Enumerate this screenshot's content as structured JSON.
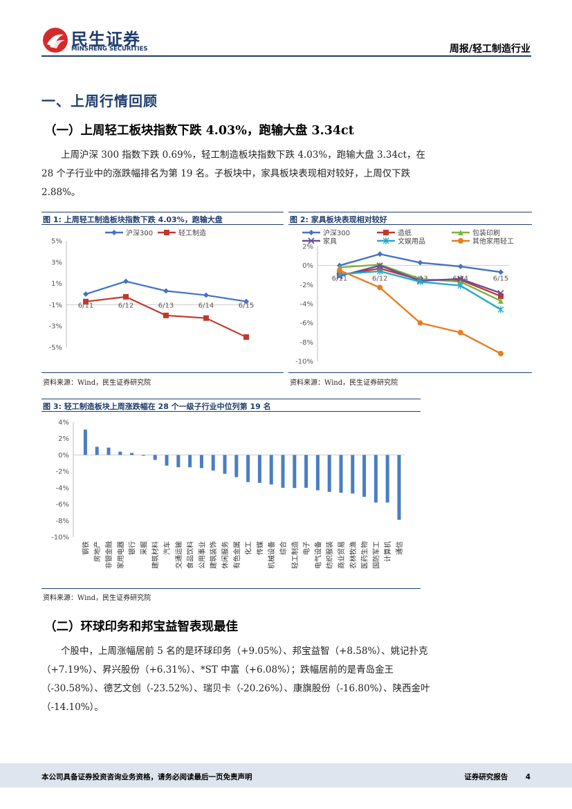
{
  "header": {
    "brand_cn": "民生证券",
    "brand_en": "MINSHENG SECURITIES",
    "report_type": "周报/轻工制造行业"
  },
  "section1": {
    "title": "一、上周行情回顾",
    "sub1_title": "（一）上周轻工板块指数下跌 4.03%，跑输大盘 3.34ct",
    "sub1_text": "上周沪深 300 指数下跌 0.69%，轻工制造板块指数下跌 4.03%，跑输大盘 3.34ct，在 28 个子行业中的涨跌幅排名为第 19 名。子板块中，家具板块表现相对较好，上周仅下跌 2.88%。",
    "sub2_title": "（二）环球印务和邦宝益智表现最佳",
    "sub2_text": "个股中，上周涨幅居前 5 名的是环球印务（+9.05%）、邦宝益智（+8.58%）、姚记扑克（+7.19%）、昇兴股份（+6.31%）、*ST 中富（+6.08%）；跌幅居前的是青岛金王（-30.58%）、德艺文创（-23.52%）、瑞贝卡（-20.26%）、康旗股份（-16.80%）、陕西金叶（-14.10%）。"
  },
  "figures": {
    "fig1_title": "图 1: 上周轻工制造板块指数下跌 4.03%，跑输大盘",
    "fig2_title": "图 2: 家具板块表现相对较好",
    "fig3_title": "图 3: 轻工制造板块上周涨跌幅在 28 个一级子行业中位列第 19 名",
    "source": "资料来源：Wind，民生证券研究院"
  },
  "chart_data": [
    {
      "type": "line",
      "categories": [
        "6/11",
        "6/12",
        "6/13",
        "6/14",
        "6/15"
      ],
      "series": [
        {
          "name": "沪深300",
          "values": [
            0.0,
            1.2,
            0.3,
            -0.1,
            -0.69
          ],
          "color": "#4472c4"
        },
        {
          "name": "轻工制造",
          "values": [
            -0.7,
            -0.25,
            -2.0,
            -2.25,
            -4.03
          ],
          "color": "#c0392b"
        }
      ],
      "ylim": [
        -5,
        5
      ],
      "yticks": [
        5,
        3,
        1,
        -1,
        -3,
        -5
      ],
      "ytick_labels": [
        "5%",
        "3%",
        "1%",
        "-1%",
        "-3%",
        "-5%"
      ],
      "legend": "top"
    },
    {
      "type": "line",
      "categories": [
        "6/11",
        "6/12",
        "6/13",
        "6/14",
        "6/15"
      ],
      "series": [
        {
          "name": "沪深300",
          "values": [
            0.0,
            1.2,
            0.3,
            -0.1,
            -0.69
          ],
          "color": "#4472c4",
          "marker": "diamond"
        },
        {
          "name": "造纸",
          "values": [
            -1.0,
            -0.3,
            -1.5,
            -1.5,
            -3.2
          ],
          "color": "#c0392b",
          "marker": "square"
        },
        {
          "name": "包装印刷",
          "values": [
            -0.2,
            0.1,
            -1.4,
            -1.7,
            -3.7
          ],
          "color": "#7cb342",
          "marker": "triangle"
        },
        {
          "name": "家具",
          "values": [
            -1.1,
            0.0,
            -1.6,
            -1.4,
            -2.88
          ],
          "color": "#6a4c9c",
          "marker": "x"
        },
        {
          "name": "文娱用品",
          "values": [
            -0.9,
            -0.6,
            -1.7,
            -2.1,
            -4.6
          ],
          "color": "#26a9c9",
          "marker": "asterisk"
        },
        {
          "name": "其他家用轻工",
          "values": [
            -0.5,
            -2.3,
            -6.0,
            -7.0,
            -9.2
          ],
          "color": "#e67e22",
          "marker": "circle"
        }
      ],
      "ylim": [
        -10,
        2
      ],
      "yticks": [
        2,
        0,
        -2,
        -4,
        -6,
        -8,
        -10
      ],
      "ytick_labels": [
        "2%",
        "0%",
        "-2%",
        "-4%",
        "-6%",
        "-8%",
        "-10%"
      ],
      "legend": "top"
    },
    {
      "type": "bar",
      "categories": [
        "钢铁",
        "房地产",
        "非银金融",
        "家用电器",
        "银行",
        "采掘",
        "建筑材料",
        "汽车",
        "交通运输",
        "食品饮料",
        "公用事业",
        "建筑装饰",
        "休闲服务",
        "有色金属",
        "化工",
        "传媒",
        "机械设备",
        "综合",
        "轻工制造",
        "电子",
        "电气设备",
        "纺织服装",
        "商业贸易",
        "农林牧渔",
        "医药生物",
        "国防军工",
        "计算机",
        "通信"
      ],
      "values": [
        3.1,
        1.0,
        0.9,
        0.4,
        0.25,
        -0.1,
        -0.6,
        -1.3,
        -1.5,
        -1.5,
        -1.6,
        -1.9,
        -2.3,
        -2.7,
        -3.3,
        -3.4,
        -3.6,
        -4.0,
        -4.03,
        -4.0,
        -4.3,
        -4.5,
        -4.6,
        -4.7,
        -5.1,
        -5.8,
        -5.8,
        -7.9
      ],
      "color": "#4a7ec2",
      "ylim": [
        -10,
        4
      ],
      "yticks": [
        4,
        2,
        0,
        -2,
        -4,
        -6,
        -8,
        -10
      ],
      "ytick_labels": [
        "4%",
        "2%",
        "0%",
        "-2%",
        "-4%",
        "-6%",
        "-8%",
        "-10%"
      ]
    }
  ],
  "footer": {
    "disclaimer": "本公司具备证券投资咨询业务资格，请务必阅读最后一页免责声明",
    "report_label": "证券研究报告",
    "page_number": "4"
  }
}
